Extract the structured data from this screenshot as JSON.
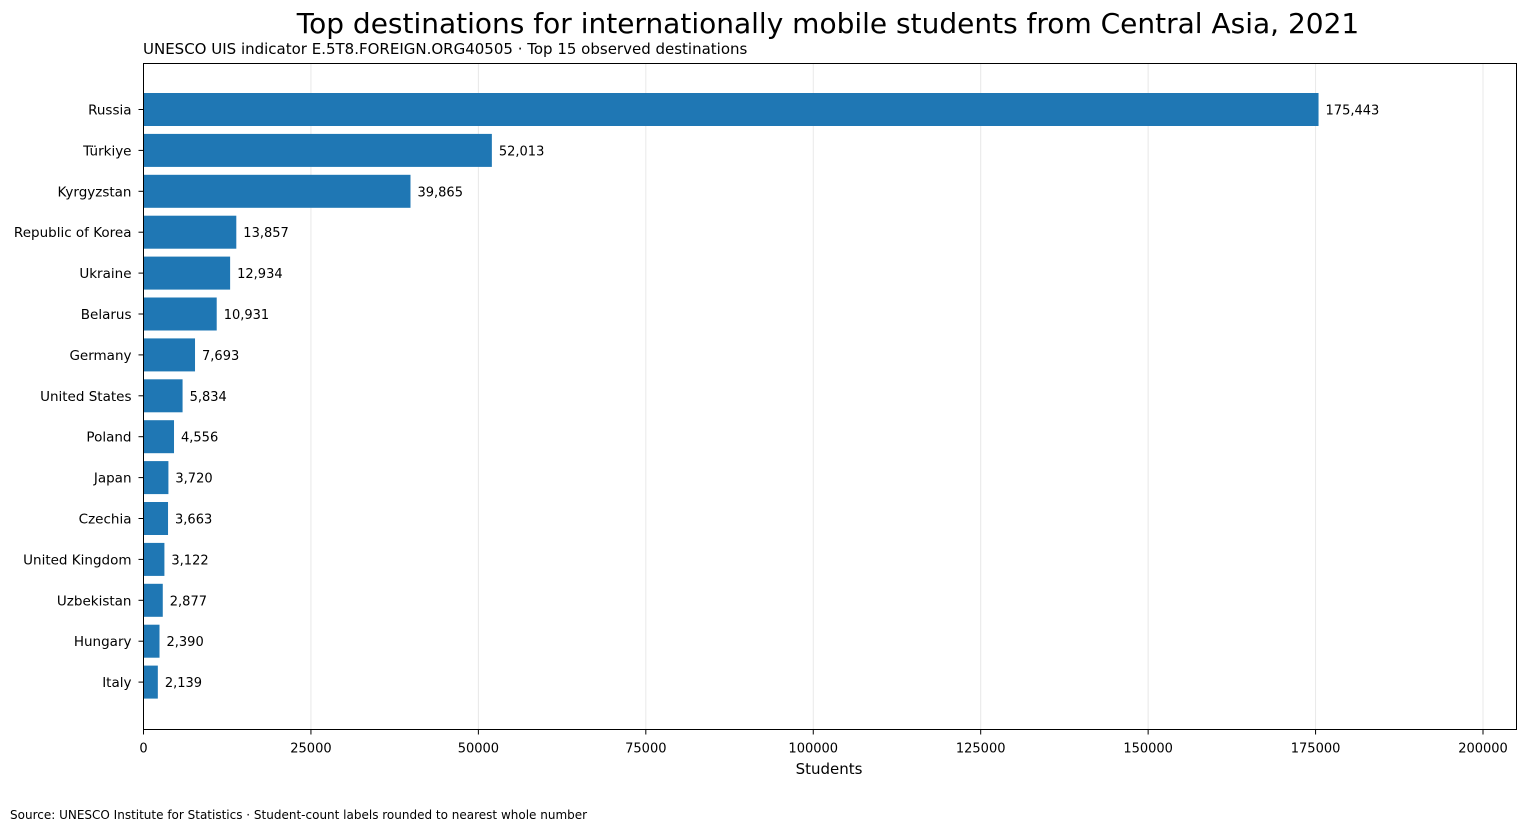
{
  "chart_data": {
    "type": "bar",
    "orientation": "horizontal",
    "title": "Top destinations for internationally mobile students from Central Asia, 2021",
    "subtitle": "UNESCO UIS indicator E.5T8.FOREIGN.ORG40505 · Top 15 observed destinations",
    "xlabel": "Students",
    "ylabel": "",
    "xlim": [
      0,
      205000
    ],
    "xticks": [
      0,
      25000,
      50000,
      75000,
      100000,
      125000,
      150000,
      175000,
      200000
    ],
    "xtick_labels": [
      "0",
      "25000",
      "50000",
      "75000",
      "100000",
      "125000",
      "150000",
      "175000",
      "200000"
    ],
    "grid": "vertical",
    "bar_color": "#1f77b4",
    "categories": [
      "Russia",
      "Türkiye",
      "Kyrgyzstan",
      "Republic of Korea",
      "Ukraine",
      "Belarus",
      "Germany",
      "United States",
      "Poland",
      "Japan",
      "Czechia",
      "United Kingdom",
      "Uzbekistan",
      "Hungary",
      "Italy"
    ],
    "values": [
      175443,
      52013,
      39865,
      13857,
      12934,
      10931,
      7693,
      5834,
      4556,
      3720,
      3663,
      3122,
      2877,
      2390,
      2139
    ],
    "value_labels": [
      "175,443",
      "52,013",
      "39,865",
      "13,857",
      "12,934",
      "10,931",
      "7,693",
      "5,834",
      "4,556",
      "3,720",
      "3,663",
      "3,122",
      "2,877",
      "2,390",
      "2,139"
    ]
  },
  "footnote": "Source: UNESCO Institute for Statistics · Student-count labels rounded to nearest whole number"
}
